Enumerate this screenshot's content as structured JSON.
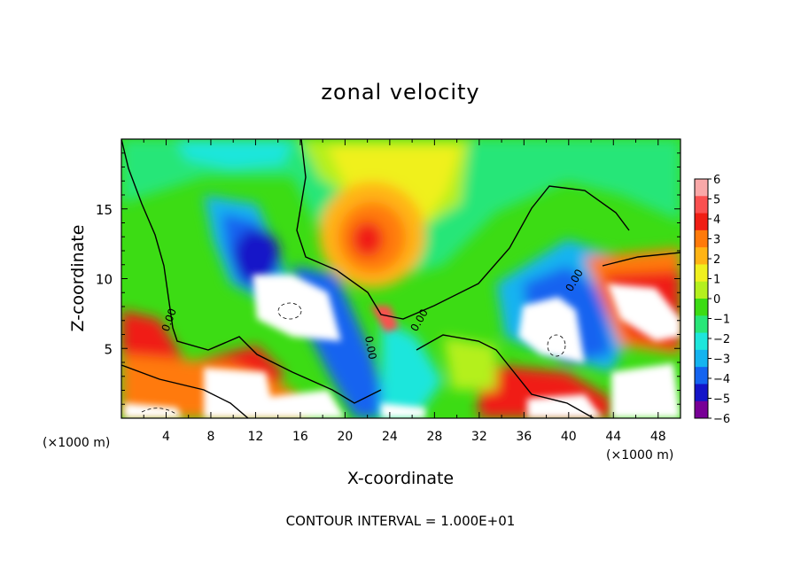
{
  "chart_data": {
    "type": "heatmap",
    "title": "zonal velocity",
    "xlabel": "X-coordinate",
    "ylabel": "Z-coordinate",
    "x_unit_left": "(×1000 m)",
    "x_unit_right": "(×1000 m)",
    "footer": "CONTOUR INTERVAL = 1.000E+01",
    "xlim": [
      0,
      50
    ],
    "ylim": [
      0,
      20
    ],
    "xticks": [
      4,
      8,
      12,
      16,
      20,
      24,
      28,
      32,
      36,
      40,
      44,
      48
    ],
    "yticks": [
      5,
      10,
      15
    ],
    "contour_label": "0.00",
    "colorbar": {
      "ticks": [
        "6",
        "5",
        "4",
        "3",
        "2",
        "1",
        "0",
        "−1",
        "−2",
        "−3",
        "−4",
        "−5",
        "−6"
      ],
      "colors": [
        "#f9a8a8",
        "#fa5050",
        "#f01e14",
        "#ff7a0a",
        "#ffb414",
        "#f0f01e",
        "#b4f01e",
        "#3cdc14",
        "#28e678",
        "#1ee6dc",
        "#14b4f0",
        "#1464f0",
        "#1414c8",
        "#780096"
      ],
      "range": [
        -6,
        6
      ]
    },
    "features": [
      {
        "name": "positive-core",
        "x": 21.5,
        "z": 12.6,
        "value": 4
      },
      {
        "name": "negative-core",
        "x": 11.5,
        "z": 11.5,
        "value": -5
      },
      {
        "name": "negative-band",
        "x": 40,
        "z": 8,
        "value": -5
      },
      {
        "name": "positive-ridge",
        "x": 23,
        "z": 7.5,
        "value": 5
      }
    ]
  }
}
